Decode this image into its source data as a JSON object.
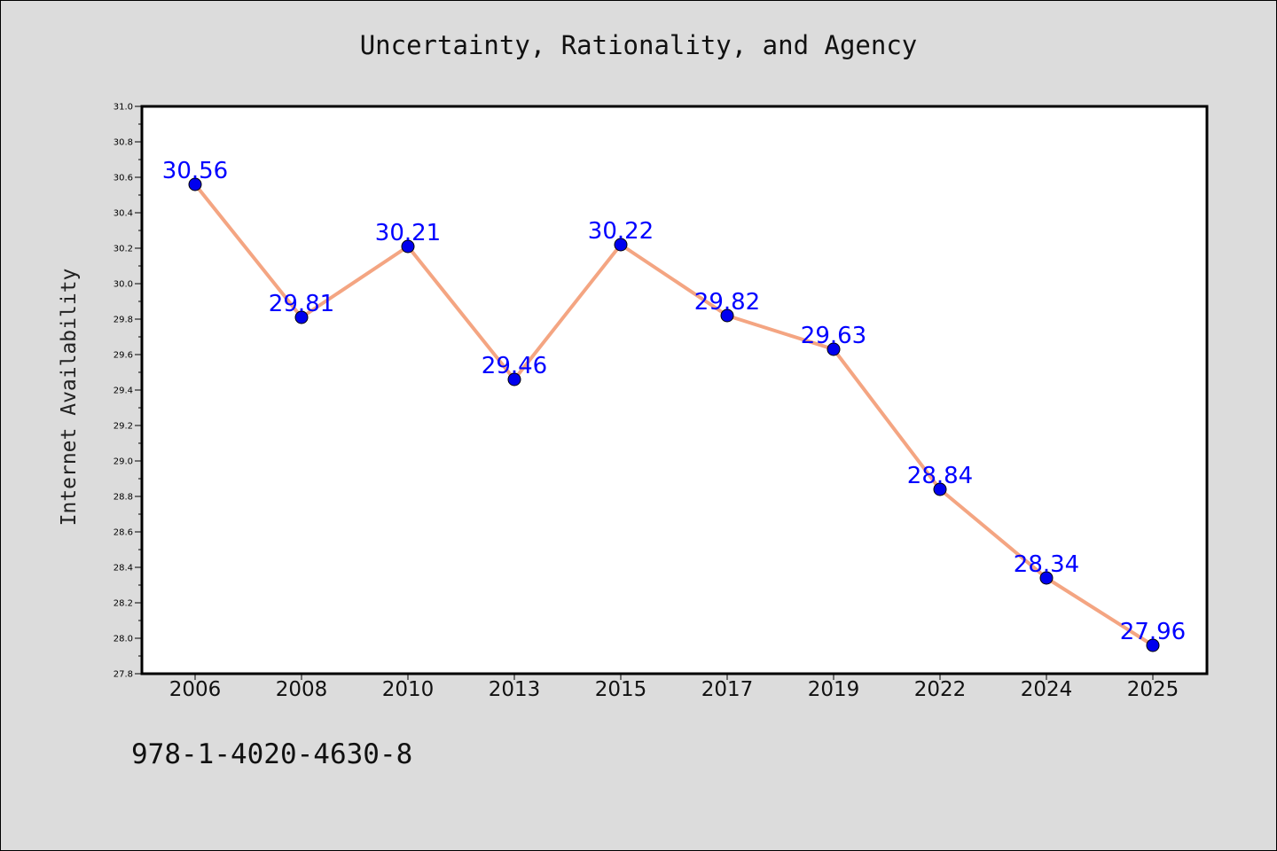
{
  "chart_data": {
    "type": "line",
    "title": "Uncertainty, Rationality, and Agency",
    "xlabel": "",
    "ylabel": "Internet Availability",
    "categories": [
      "2006",
      "2008",
      "2010",
      "2013",
      "2015",
      "2017",
      "2019",
      "2022",
      "2024",
      "2025"
    ],
    "series": [
      {
        "values": [
          30.56,
          29.81,
          30.21,
          29.46,
          30.22,
          29.82,
          29.63,
          28.84,
          28.34,
          27.96
        ],
        "line_color": "#f4a582",
        "marker_color": "#0000ee",
        "label_color": "#0000ff"
      }
    ],
    "data_labels": [
      "30.56",
      "29.81",
      "30.21",
      "29.46",
      "30.22",
      "29.82",
      "29.63",
      "28.84",
      "28.34",
      "27.96"
    ],
    "ylim": [
      27.8,
      31.0
    ],
    "yticks": [
      "27.8",
      "28.0",
      "28.2",
      "28.4",
      "28.6",
      "28.8",
      "29.0",
      "29.2",
      "29.4",
      "29.6",
      "29.8",
      "30.0",
      "30.2",
      "30.4",
      "30.6",
      "30.8",
      "31.0"
    ],
    "grid": false,
    "legend": "none"
  },
  "footnote": "978-1-4020-4630-8",
  "colors": {
    "background": "#dcdcdc",
    "plot_background": "#ffffff"
  }
}
